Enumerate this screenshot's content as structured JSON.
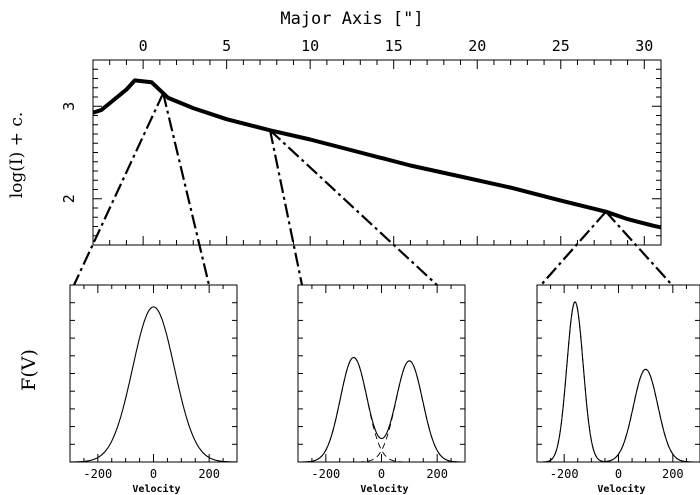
{
  "chart_data": [
    {
      "type": "line",
      "title": "",
      "xlabel": "Major Axis [\"]",
      "ylabel": "log(I) + c.",
      "xlim": [
        -3,
        31
      ],
      "ylim": [
        1.5,
        3.5
      ],
      "xticks": [
        0,
        5,
        10,
        15,
        20,
        25,
        30
      ],
      "yticks": [
        2,
        3
      ],
      "x_axis_position": "top",
      "grid": false,
      "series": [
        {
          "x": [
            -3,
            -2.5,
            -1,
            -0.5,
            0.5,
            1.5,
            3,
            5,
            7.6,
            10,
            13,
            16,
            19,
            22,
            25,
            27.7,
            29,
            30.5,
            31
          ],
          "y": [
            2.93,
            2.96,
            3.18,
            3.28,
            3.26,
            3.09,
            2.98,
            2.86,
            2.74,
            2.64,
            2.5,
            2.36,
            2.24,
            2.12,
            1.98,
            1.86,
            1.78,
            1.71,
            1.69
          ]
        }
      ],
      "connectors": [
        {
          "from_x": 1.2,
          "to_panel": 0
        },
        {
          "from_x": 7.6,
          "to_panel": 1
        },
        {
          "from_x": 27.7,
          "to_panel": 2
        }
      ]
    },
    {
      "type": "line",
      "xlabel": "Velocity",
      "ylabel": "F(V)",
      "xlim": [
        -300,
        300
      ],
      "xticks": [
        -200,
        0,
        200
      ],
      "ylim": [
        0,
        1.05
      ],
      "series": [
        {
          "components": [
            {
              "amp": 0.92,
              "mu": 0,
              "sigma": 75
            }
          ],
          "style": "solid"
        }
      ]
    },
    {
      "type": "line",
      "xlabel": "Velocity",
      "xlim": [
        -300,
        300
      ],
      "xticks": [
        -200,
        0,
        200
      ],
      "ylim": [
        0,
        1.05
      ],
      "series": [
        {
          "components": [
            {
              "amp": 0.62,
              "mu": -100,
              "sigma": 48
            },
            {
              "amp": 0.6,
              "mu": 100,
              "sigma": 48
            }
          ],
          "style": "solid",
          "show_components": true
        }
      ]
    },
    {
      "type": "line",
      "xlabel": "Velocity",
      "xlim": [
        -300,
        300
      ],
      "xticks": [
        -200,
        0,
        200
      ],
      "ylim": [
        0,
        1.05
      ],
      "series": [
        {
          "components": [
            {
              "amp": 0.95,
              "mu": -160,
              "sigma": 30
            },
            {
              "amp": 0.55,
              "mu": 100,
              "sigma": 45
            }
          ],
          "style": "solid",
          "show_components": true
        }
      ]
    }
  ]
}
